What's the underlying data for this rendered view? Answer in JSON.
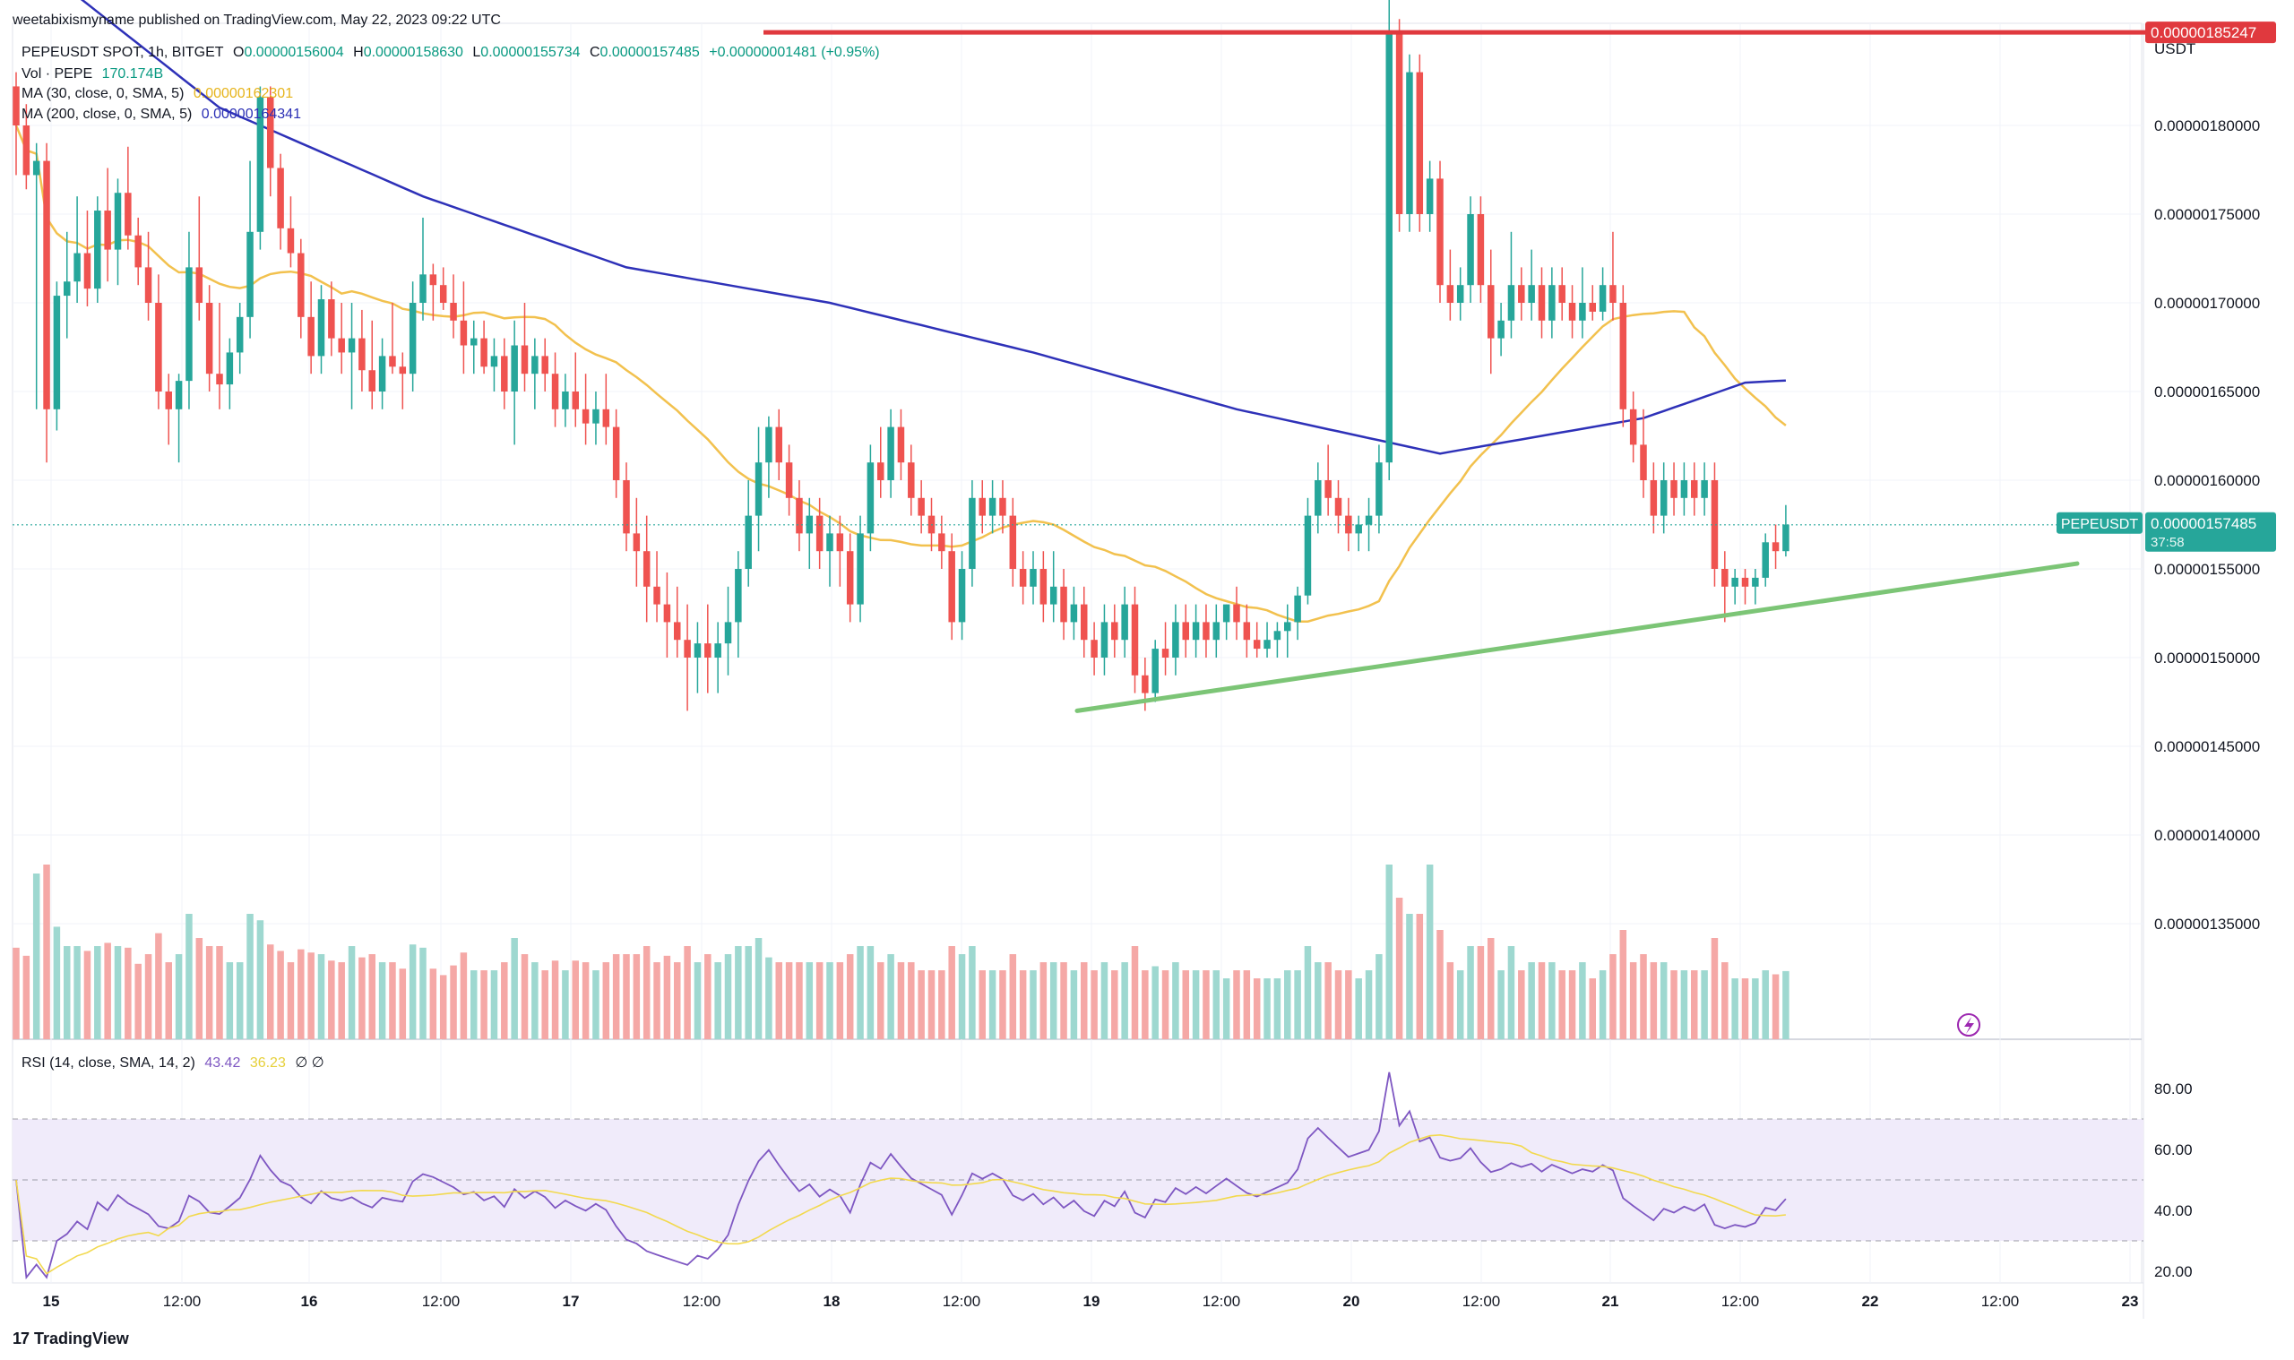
{
  "header": {
    "published": "weetabixismyname published on TradingView.com, May 22, 2023 09:22 UTC"
  },
  "legend": {
    "symbol": "PEPEUSDT SPOT, 1h, BITGET",
    "o_label": "O",
    "o_value": "0.00000156004",
    "h_label": "H",
    "h_value": "0.00000158630",
    "l_label": "L",
    "l_value": "0.00000155734",
    "c_label": "C",
    "c_value": "0.00000157485",
    "change": "+0.00000001481 (+0.95%)",
    "vol_label": "Vol · PEPE",
    "vol_value": "170.174B",
    "ma30_label": "MA (30, close, 0, SMA, 5)",
    "ma30_value": "0.00000162301",
    "ma200_label": "MA (200, close, 0, SMA, 5)",
    "ma200_value": "0.00000164341",
    "rsi_label": "RSI (14, close, SMA, 14, 2)",
    "rsi_value": "43.42",
    "rsi_ma_value": "36.23",
    "rsi_extra": "∅ ∅"
  },
  "price_axis": {
    "unit": "USDT",
    "ticks": [
      "0.00000180000",
      "0.00000175000",
      "0.00000170000",
      "0.00000165000",
      "0.00000160000",
      "0.00000155000",
      "0.00000150000",
      "0.00000145000",
      "0.00000140000",
      "0.00000135000"
    ],
    "red_label": "0.00000185247",
    "symbol_tag": "PEPEUSDT",
    "last_price": "0.00000157485",
    "countdown": "37:58"
  },
  "rsi_axis": {
    "ticks": [
      "80.00",
      "60.00",
      "40.00",
      "20.00"
    ]
  },
  "time_axis": {
    "ticks": [
      "15",
      "12:00",
      "16",
      "12:00",
      "17",
      "12:00",
      "18",
      "12:00",
      "19",
      "12:00",
      "20",
      "12:00",
      "21",
      "12:00",
      "22",
      "12:00",
      "23"
    ]
  },
  "footer": {
    "brand": "TradingView",
    "logo": "17"
  },
  "colors": {
    "up": "#26a69a",
    "down": "#ef5350",
    "ma30": "#f2c14e",
    "ma200": "#2e31b8",
    "red_line": "#e0393e",
    "green_line": "#7cc576",
    "rsi": "#7e57c2"
  },
  "chart_data": {
    "type": "candlestick",
    "interval": "1h",
    "x_range": [
      "May 14 22:00",
      "May 22 09:00"
    ],
    "y_range": [
      1.33e-06,
      1.9e-06
    ],
    "support_line": {
      "from": [
        "May 18 19:00",
        1.47e-06
      ],
      "to": [
        "May 22 21:00",
        1.553e-06
      ]
    },
    "resistance_line": {
      "from": [
        "May 17 15:00",
        1.85247e-06
      ],
      "to": [
        "May 22 09:00",
        1.85247e-06
      ]
    },
    "ohlc": [
      [
        1.822e-06,
        1.83e-06,
        1.772e-06,
        1.8e-06
      ],
      [
        1.8e-06,
        1.812e-06,
        1.764e-06,
        1.772e-06
      ],
      [
        1.772e-06,
        1.79e-06,
        1.64e-06,
        1.78e-06
      ],
      [
        1.78e-06,
        1.79e-06,
        1.61e-06,
        1.64e-06
      ],
      [
        1.64e-06,
        1.712e-06,
        1.628e-06,
        1.704e-06
      ],
      [
        1.704e-06,
        1.74e-06,
        1.68e-06,
        1.712e-06
      ],
      [
        1.712e-06,
        1.76e-06,
        1.7e-06,
        1.728e-06
      ],
      [
        1.728e-06,
        1.752e-06,
        1.698e-06,
        1.708e-06
      ],
      [
        1.708e-06,
        1.76e-06,
        1.7e-06,
        1.752e-06
      ],
      [
        1.752e-06,
        1.776e-06,
        1.712e-06,
        1.73e-06
      ],
      [
        1.73e-06,
        1.77e-06,
        1.71e-06,
        1.762e-06
      ],
      [
        1.762e-06,
        1.788e-06,
        1.73e-06,
        1.738e-06
      ],
      [
        1.738e-06,
        1.748e-06,
        1.71e-06,
        1.72e-06
      ],
      [
        1.72e-06,
        1.74e-06,
        1.69e-06,
        1.7e-06
      ],
      [
        1.7e-06,
        1.716e-06,
        1.64e-06,
        1.65e-06
      ],
      [
        1.65e-06,
        1.66e-06,
        1.62e-06,
        1.64e-06
      ],
      [
        1.64e-06,
        1.66e-06,
        1.61e-06,
        1.656e-06
      ],
      [
        1.656e-06,
        1.74e-06,
        1.64e-06,
        1.72e-06
      ],
      [
        1.72e-06,
        1.76e-06,
        1.69e-06,
        1.7e-06
      ],
      [
        1.7e-06,
        1.71e-06,
        1.65e-06,
        1.66e-06
      ],
      [
        1.66e-06,
        1.7e-06,
        1.64e-06,
        1.654e-06
      ],
      [
        1.654e-06,
        1.68e-06,
        1.64e-06,
        1.672e-06
      ],
      [
        1.672e-06,
        1.7e-06,
        1.66e-06,
        1.692e-06
      ],
      [
        1.692e-06,
        1.78e-06,
        1.68e-06,
        1.74e-06
      ],
      [
        1.74e-06,
        1.822e-06,
        1.73e-06,
        1.816e-06
      ],
      [
        1.816e-06,
        1.822e-06,
        1.76e-06,
        1.776e-06
      ],
      [
        1.776e-06,
        1.784e-06,
        1.73e-06,
        1.742e-06
      ],
      [
        1.742e-06,
        1.76e-06,
        1.72e-06,
        1.728e-06
      ],
      [
        1.728e-06,
        1.736e-06,
        1.68e-06,
        1.692e-06
      ],
      [
        1.692e-06,
        1.712e-06,
        1.66e-06,
        1.67e-06
      ],
      [
        1.67e-06,
        1.71e-06,
        1.66e-06,
        1.702e-06
      ],
      [
        1.702e-06,
        1.712e-06,
        1.67e-06,
        1.68e-06
      ],
      [
        1.68e-06,
        1.7e-06,
        1.66e-06,
        1.672e-06
      ],
      [
        1.672e-06,
        1.7e-06,
        1.64e-06,
        1.68e-06
      ],
      [
        1.68e-06,
        1.696e-06,
        1.65e-06,
        1.662e-06
      ],
      [
        1.662e-06,
        1.69e-06,
        1.64e-06,
        1.65e-06
      ],
      [
        1.65e-06,
        1.68e-06,
        1.64e-06,
        1.67e-06
      ],
      [
        1.67e-06,
        1.7e-06,
        1.66e-06,
        1.664e-06
      ],
      [
        1.664e-06,
        1.672e-06,
        1.64e-06,
        1.66e-06
      ],
      [
        1.66e-06,
        1.712e-06,
        1.65e-06,
        1.7e-06
      ],
      [
        1.7e-06,
        1.748e-06,
        1.69e-06,
        1.716e-06
      ],
      [
        1.716e-06,
        1.722e-06,
        1.69e-06,
        1.71e-06
      ],
      [
        1.71e-06,
        1.72e-06,
        1.696e-06,
        1.7e-06
      ],
      [
        1.7e-06,
        1.716e-06,
        1.68e-06,
        1.69e-06
      ],
      [
        1.69e-06,
        1.712e-06,
        1.66e-06,
        1.676e-06
      ],
      [
        1.676e-06,
        1.69e-06,
        1.66e-06,
        1.68e-06
      ],
      [
        1.68e-06,
        1.69e-06,
        1.66e-06,
        1.664e-06
      ],
      [
        1.664e-06,
        1.68e-06,
        1.65e-06,
        1.67e-06
      ],
      [
        1.67e-06,
        1.68e-06,
        1.64e-06,
        1.65e-06
      ],
      [
        1.65e-06,
        1.69e-06,
        1.62e-06,
        1.676e-06
      ],
      [
        1.676e-06,
        1.7e-06,
        1.65e-06,
        1.66e-06
      ],
      [
        1.66e-06,
        1.68e-06,
        1.64e-06,
        1.67e-06
      ],
      [
        1.67e-06,
        1.68e-06,
        1.65e-06,
        1.66e-06
      ],
      [
        1.66e-06,
        1.672e-06,
        1.63e-06,
        1.64e-06
      ],
      [
        1.64e-06,
        1.66e-06,
        1.63e-06,
        1.65e-06
      ],
      [
        1.65e-06,
        1.672e-06,
        1.63e-06,
        1.64e-06
      ],
      [
        1.64e-06,
        1.66e-06,
        1.62e-06,
        1.632e-06
      ],
      [
        1.632e-06,
        1.65e-06,
        1.62e-06,
        1.64e-06
      ],
      [
        1.64e-06,
        1.66e-06,
        1.62e-06,
        1.63e-06
      ],
      [
        1.63e-06,
        1.64e-06,
        1.59e-06,
        1.6e-06
      ],
      [
        1.6e-06,
        1.61e-06,
        1.56e-06,
        1.57e-06
      ],
      [
        1.57e-06,
        1.59e-06,
        1.54e-06,
        1.56e-06
      ],
      [
        1.56e-06,
        1.58e-06,
        1.52e-06,
        1.54e-06
      ],
      [
        1.54e-06,
        1.56e-06,
        1.52e-06,
        1.53e-06
      ],
      [
        1.53e-06,
        1.548e-06,
        1.5e-06,
        1.52e-06
      ],
      [
        1.52e-06,
        1.54e-06,
        1.5e-06,
        1.51e-06
      ],
      [
        1.51e-06,
        1.53e-06,
        1.47e-06,
        1.5e-06
      ],
      [
        1.5e-06,
        1.52e-06,
        1.48e-06,
        1.508e-06
      ],
      [
        1.508e-06,
        1.53e-06,
        1.48e-06,
        1.5e-06
      ],
      [
        1.5e-06,
        1.52e-06,
        1.48e-06,
        1.508e-06
      ],
      [
        1.508e-06,
        1.54e-06,
        1.49e-06,
        1.52e-06
      ],
      [
        1.52e-06,
        1.56e-06,
        1.5e-06,
        1.55e-06
      ],
      [
        1.55e-06,
        1.6e-06,
        1.54e-06,
        1.58e-06
      ],
      [
        1.58e-06,
        1.63e-06,
        1.56e-06,
        1.61e-06
      ],
      [
        1.61e-06,
        1.636e-06,
        1.59e-06,
        1.63e-06
      ],
      [
        1.63e-06,
        1.64e-06,
        1.6e-06,
        1.61e-06
      ],
      [
        1.61e-06,
        1.62e-06,
        1.58e-06,
        1.59e-06
      ],
      [
        1.59e-06,
        1.6e-06,
        1.56e-06,
        1.57e-06
      ],
      [
        1.57e-06,
        1.59e-06,
        1.55e-06,
        1.58e-06
      ],
      [
        1.58e-06,
        1.59e-06,
        1.55e-06,
        1.56e-06
      ],
      [
        1.56e-06,
        1.58e-06,
        1.54e-06,
        1.57e-06
      ],
      [
        1.57e-06,
        1.58e-06,
        1.54e-06,
        1.56e-06
      ],
      [
        1.56e-06,
        1.57e-06,
        1.52e-06,
        1.53e-06
      ],
      [
        1.53e-06,
        1.58e-06,
        1.52e-06,
        1.57e-06
      ],
      [
        1.57e-06,
        1.62e-06,
        1.56e-06,
        1.61e-06
      ],
      [
        1.61e-06,
        1.63e-06,
        1.59e-06,
        1.6e-06
      ],
      [
        1.6e-06,
        1.64e-06,
        1.59e-06,
        1.63e-06
      ],
      [
        1.63e-06,
        1.64e-06,
        1.6e-06,
        1.61e-06
      ],
      [
        1.61e-06,
        1.62e-06,
        1.58e-06,
        1.59e-06
      ],
      [
        1.59e-06,
        1.6e-06,
        1.57e-06,
        1.58e-06
      ],
      [
        1.58e-06,
        1.59e-06,
        1.56e-06,
        1.57e-06
      ],
      [
        1.57e-06,
        1.58e-06,
        1.55e-06,
        1.56e-06
      ],
      [
        1.56e-06,
        1.57e-06,
        1.51e-06,
        1.52e-06
      ],
      [
        1.52e-06,
        1.56e-06,
        1.51e-06,
        1.55e-06
      ],
      [
        1.55e-06,
        1.6e-06,
        1.54e-06,
        1.59e-06
      ],
      [
        1.59e-06,
        1.6e-06,
        1.57e-06,
        1.58e-06
      ],
      [
        1.58e-06,
        1.6e-06,
        1.57e-06,
        1.59e-06
      ],
      [
        1.59e-06,
        1.6e-06,
        1.57e-06,
        1.58e-06
      ],
      [
        1.58e-06,
        1.59e-06,
        1.54e-06,
        1.55e-06
      ],
      [
        1.55e-06,
        1.56e-06,
        1.53e-06,
        1.54e-06
      ],
      [
        1.54e-06,
        1.56e-06,
        1.53e-06,
        1.55e-06
      ],
      [
        1.55e-06,
        1.56e-06,
        1.52e-06,
        1.53e-06
      ],
      [
        1.53e-06,
        1.56e-06,
        1.52e-06,
        1.54e-06
      ],
      [
        1.54e-06,
        1.55e-06,
        1.51e-06,
        1.52e-06
      ],
      [
        1.52e-06,
        1.54e-06,
        1.51e-06,
        1.53e-06
      ],
      [
        1.53e-06,
        1.54e-06,
        1.5e-06,
        1.51e-06
      ],
      [
        1.51e-06,
        1.52e-06,
        1.49e-06,
        1.5e-06
      ],
      [
        1.5e-06,
        1.53e-06,
        1.49e-06,
        1.52e-06
      ],
      [
        1.52e-06,
        1.53e-06,
        1.5e-06,
        1.51e-06
      ],
      [
        1.51e-06,
        1.54e-06,
        1.5e-06,
        1.53e-06
      ],
      [
        1.53e-06,
        1.54e-06,
        1.48e-06,
        1.49e-06
      ],
      [
        1.49e-06,
        1.5e-06,
        1.47e-06,
        1.48e-06
      ],
      [
        1.48e-06,
        1.51e-06,
        1.475e-06,
        1.505e-06
      ],
      [
        1.505e-06,
        1.52e-06,
        1.49e-06,
        1.5e-06
      ],
      [
        1.5e-06,
        1.53e-06,
        1.49e-06,
        1.52e-06
      ],
      [
        1.52e-06,
        1.53e-06,
        1.5e-06,
        1.51e-06
      ],
      [
        1.51e-06,
        1.53e-06,
        1.5e-06,
        1.52e-06
      ],
      [
        1.52e-06,
        1.53e-06,
        1.5e-06,
        1.51e-06
      ],
      [
        1.51e-06,
        1.53e-06,
        1.5e-06,
        1.52e-06
      ],
      [
        1.52e-06,
        1.53e-06,
        1.51e-06,
        1.53e-06
      ],
      [
        1.53e-06,
        1.54e-06,
        1.51e-06,
        1.52e-06
      ],
      [
        1.52e-06,
        1.53e-06,
        1.5e-06,
        1.51e-06
      ],
      [
        1.51e-06,
        1.52e-06,
        1.5e-06,
        1.505e-06
      ],
      [
        1.505e-06,
        1.52e-06,
        1.5e-06,
        1.51e-06
      ],
      [
        1.51e-06,
        1.52e-06,
        1.5e-06,
        1.515e-06
      ],
      [
        1.515e-06,
        1.53e-06,
        1.5e-06,
        1.52e-06
      ],
      [
        1.52e-06,
        1.54e-06,
        1.51e-06,
        1.535e-06
      ],
      [
        1.535e-06,
        1.59e-06,
        1.53e-06,
        1.58e-06
      ],
      [
        1.58e-06,
        1.61e-06,
        1.57e-06,
        1.6e-06
      ],
      [
        1.6e-06,
        1.62e-06,
        1.58e-06,
        1.59e-06
      ],
      [
        1.59e-06,
        1.6e-06,
        1.57e-06,
        1.58e-06
      ],
      [
        1.58e-06,
        1.59e-06,
        1.56e-06,
        1.57e-06
      ],
      [
        1.57e-06,
        1.58e-06,
        1.56e-06,
        1.575e-06
      ],
      [
        1.575e-06,
        1.59e-06,
        1.56e-06,
        1.58e-06
      ],
      [
        1.58e-06,
        1.62e-06,
        1.57e-06,
        1.61e-06
      ],
      [
        1.61e-06,
        1.9e-06,
        1.6e-06,
        1.852e-06
      ],
      [
        1.852e-06,
        1.86e-06,
        1.74e-06,
        1.75e-06
      ],
      [
        1.75e-06,
        1.84e-06,
        1.74e-06,
        1.83e-06
      ],
      [
        1.83e-06,
        1.84e-06,
        1.74e-06,
        1.75e-06
      ],
      [
        1.75e-06,
        1.78e-06,
        1.74e-06,
        1.77e-06
      ],
      [
        1.77e-06,
        1.78e-06,
        1.7e-06,
        1.71e-06
      ],
      [
        1.71e-06,
        1.73e-06,
        1.69e-06,
        1.7e-06
      ],
      [
        1.7e-06,
        1.72e-06,
        1.69e-06,
        1.71e-06
      ],
      [
        1.71e-06,
        1.76e-06,
        1.7e-06,
        1.75e-06
      ],
      [
        1.75e-06,
        1.76e-06,
        1.7e-06,
        1.71e-06
      ],
      [
        1.71e-06,
        1.73e-06,
        1.66e-06,
        1.68e-06
      ],
      [
        1.68e-06,
        1.7e-06,
        1.67e-06,
        1.69e-06
      ],
      [
        1.69e-06,
        1.74e-06,
        1.68e-06,
        1.71e-06
      ],
      [
        1.71e-06,
        1.72e-06,
        1.69e-06,
        1.7e-06
      ],
      [
        1.7e-06,
        1.73e-06,
        1.69e-06,
        1.71e-06
      ],
      [
        1.71e-06,
        1.72e-06,
        1.68e-06,
        1.69e-06
      ],
      [
        1.69e-06,
        1.72e-06,
        1.68e-06,
        1.71e-06
      ],
      [
        1.71e-06,
        1.72e-06,
        1.69e-06,
        1.7e-06
      ],
      [
        1.7e-06,
        1.71e-06,
        1.68e-06,
        1.69e-06
      ],
      [
        1.69e-06,
        1.72e-06,
        1.68e-06,
        1.7e-06
      ],
      [
        1.7e-06,
        1.71e-06,
        1.69e-06,
        1.695e-06
      ],
      [
        1.695e-06,
        1.72e-06,
        1.69e-06,
        1.71e-06
      ],
      [
        1.71e-06,
        1.74e-06,
        1.69e-06,
        1.7e-06
      ],
      [
        1.7e-06,
        1.71e-06,
        1.63e-06,
        1.64e-06
      ],
      [
        1.64e-06,
        1.65e-06,
        1.61e-06,
        1.62e-06
      ],
      [
        1.62e-06,
        1.64e-06,
        1.59e-06,
        1.6e-06
      ],
      [
        1.6e-06,
        1.61e-06,
        1.57e-06,
        1.58e-06
      ],
      [
        1.58e-06,
        1.61e-06,
        1.57e-06,
        1.6e-06
      ],
      [
        1.6e-06,
        1.61e-06,
        1.58e-06,
        1.59e-06
      ],
      [
        1.59e-06,
        1.61e-06,
        1.58e-06,
        1.6e-06
      ],
      [
        1.6e-06,
        1.61e-06,
        1.58e-06,
        1.59e-06
      ],
      [
        1.59e-06,
        1.61e-06,
        1.58e-06,
        1.6e-06
      ],
      [
        1.6e-06,
        1.61e-06,
        1.54e-06,
        1.55e-06
      ],
      [
        1.55e-06,
        1.56e-06,
        1.52e-06,
        1.54e-06
      ],
      [
        1.54e-06,
        1.55e-06,
        1.53e-06,
        1.545e-06
      ],
      [
        1.545e-06,
        1.55e-06,
        1.53e-06,
        1.54e-06
      ],
      [
        1.54e-06,
        1.55e-06,
        1.53e-06,
        1.545e-06
      ],
      [
        1.545e-06,
        1.57e-06,
        1.54e-06,
        1.565e-06
      ],
      [
        1.565e-06,
        1.575e-06,
        1.55e-06,
        1.56e-06
      ],
      [
        1.56e-06,
        1.586e-06,
        1.557e-06,
        1.575e-06
      ]
    ],
    "volume_units": "PEPE",
    "rsi_guides": [
      70,
      50,
      30
    ]
  }
}
